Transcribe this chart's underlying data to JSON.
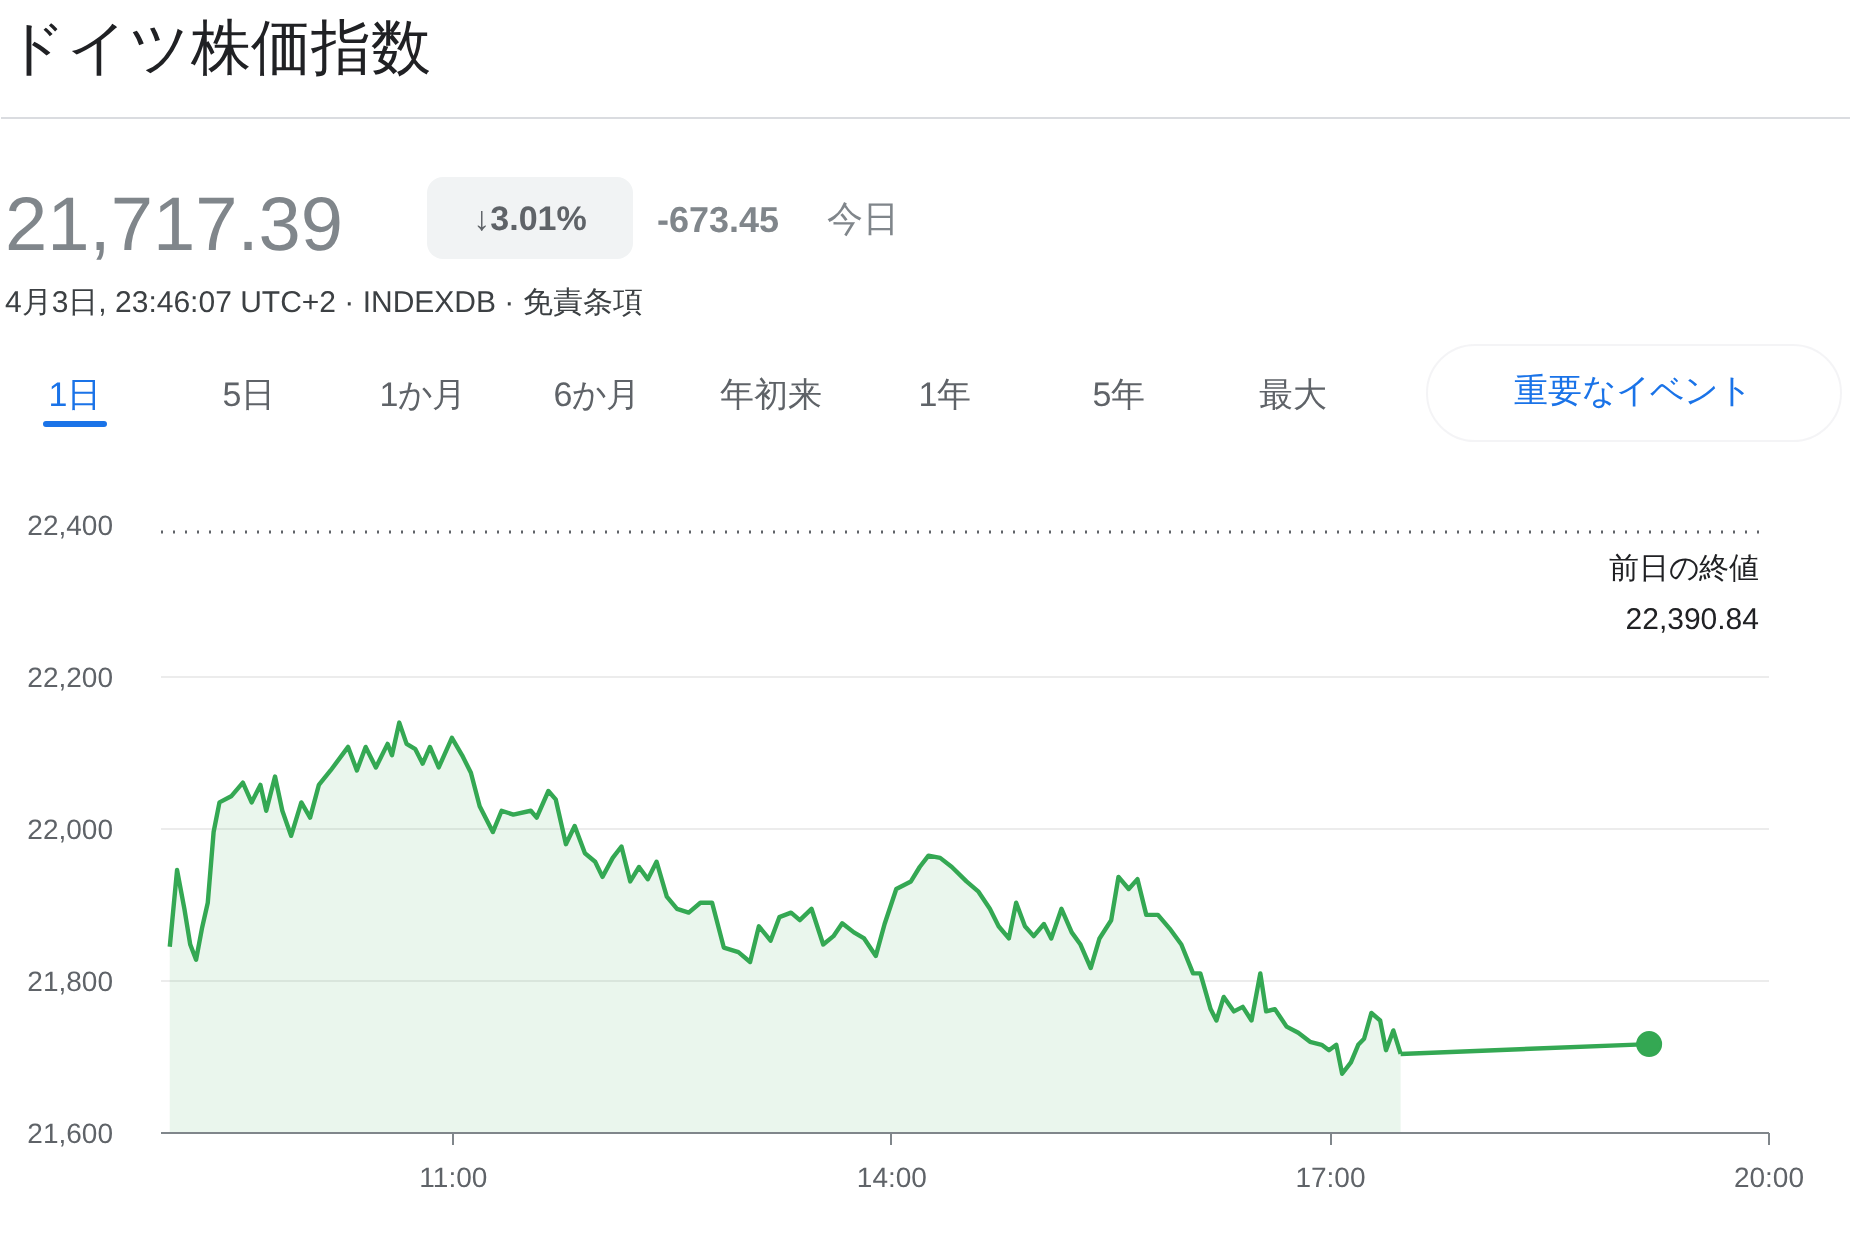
{
  "chart_data": {
    "type": "area",
    "title": "ドイツ株価指数",
    "subtitle": "4月3日, 23:46:07 UTC+2 · INDEXDB · 免責条項",
    "annotations": [
      "21,717.39",
      "↓3.01%",
      "-673.45",
      "今日",
      "1日",
      "5日",
      "1か月",
      "6か月",
      "年初来",
      "1年",
      "5年",
      "最大",
      "重要なイベント"
    ],
    "xlim": [
      9,
      20
    ],
    "xticks": [
      {
        "value": 11,
        "label": "11:00"
      },
      {
        "value": 14,
        "label": "14:00"
      },
      {
        "value": 17,
        "label": "17:00"
      },
      {
        "value": 20,
        "label": "20:00"
      }
    ],
    "ylim": [
      21600,
      22400
    ],
    "yticks": [
      {
        "value": 21600,
        "label": "21,600"
      },
      {
        "value": 21800,
        "label": "21,800"
      },
      {
        "value": 22000,
        "label": "22,000"
      },
      {
        "value": 22200,
        "label": "22,200"
      },
      {
        "value": 22400,
        "label": "22,400"
      }
    ],
    "grid": "y",
    "ref_lines": [
      {
        "axis": "y",
        "value": 22390.84,
        "label": "前日の終値 22,390.84",
        "line_style": "dotted",
        "color": "#5f6368"
      }
    ],
    "series": [
      {
        "color": "#34a853",
        "x": [
          9.06,
          9.11,
          9.16,
          9.2,
          9.24,
          9.28,
          9.32,
          9.36,
          9.4,
          9.48,
          9.56,
          9.62,
          9.68,
          9.72,
          9.78,
          9.83,
          9.89,
          9.96,
          10.02,
          10.08,
          10.16,
          10.28,
          10.34,
          10.4,
          10.47,
          10.55,
          10.58,
          10.63,
          10.68,
          10.74,
          10.79,
          10.84,
          10.9,
          10.99,
          11.06,
          11.12,
          11.18,
          11.27,
          11.33,
          11.41,
          11.53,
          11.57,
          11.65,
          11.7,
          11.77,
          11.83,
          11.9,
          11.97,
          12.02,
          12.09,
          12.15,
          12.21,
          12.27,
          12.33,
          12.39,
          12.46,
          12.53,
          12.61,
          12.69,
          12.77,
          12.85,
          12.95,
          13.03,
          13.09,
          13.17,
          13.23,
          13.31,
          13.37,
          13.45,
          13.53,
          13.6,
          13.66,
          13.74,
          13.81,
          13.89,
          13.95,
          14.03,
          14.13,
          14.19,
          14.25,
          14.33,
          14.41,
          14.51,
          14.59,
          14.67,
          14.73,
          14.8,
          14.85,
          14.91,
          14.97,
          15.04,
          15.09,
          15.16,
          15.23,
          15.29,
          15.36,
          15.42,
          15.5,
          15.55,
          15.62,
          15.68,
          15.74,
          15.82,
          15.9,
          15.98,
          16.06,
          16.11,
          16.18,
          16.22,
          16.27,
          16.34,
          16.4,
          16.46,
          16.52,
          16.56,
          16.62,
          16.7,
          16.78,
          16.86,
          16.94,
          16.99,
          17.04,
          17.08,
          17.14,
          17.19,
          17.23,
          17.28,
          17.34,
          17.38,
          17.43,
          17.48
        ],
        "values": [
          21845,
          21946,
          21895,
          21848,
          21828,
          21869,
          21903,
          21996,
          22035,
          22043,
          22061,
          22035,
          22058,
          22024,
          22069,
          22024,
          21991,
          22035,
          22015,
          22058,
          22077,
          22108,
          22077,
          22108,
          22081,
          22112,
          22097,
          22140,
          22112,
          22105,
          22086,
          22108,
          22081,
          22120,
          22097,
          22074,
          22030,
          21996,
          22024,
          22019,
          22024,
          22015,
          22050,
          22039,
          21980,
          22004,
          21968,
          21957,
          21937,
          21962,
          21977,
          21931,
          21950,
          21934,
          21957,
          21911,
          21895,
          21890,
          21903,
          21903,
          21844,
          21838,
          21825,
          21872,
          21853,
          21884,
          21890,
          21880,
          21895,
          21848,
          21859,
          21876,
          21864,
          21856,
          21833,
          21875,
          21921,
          21931,
          21950,
          21965,
          21962,
          21950,
          21931,
          21918,
          21895,
          21872,
          21856,
          21903,
          21872,
          21859,
          21875,
          21856,
          21895,
          21864,
          21848,
          21817,
          21856,
          21880,
          21937,
          21921,
          21934,
          21887,
          21887,
          21869,
          21848,
          21810,
          21810,
          21763,
          21748,
          21779,
          21760,
          21766,
          21748,
          21810,
          21760,
          21763,
          21740,
          21732,
          21720,
          21716,
          21709,
          21716,
          21678,
          21693,
          21716,
          21724,
          21758,
          21748,
          21709,
          21735,
          21704
        ]
      },
      {
        "type": "line",
        "color": "#34a853",
        "x": [
          17.48,
          19.18
        ],
        "values": [
          21704,
          21717
        ]
      },
      {
        "type": "scatter",
        "color": "#34a853",
        "marker": "circle",
        "x": [
          19.18
        ],
        "values": [
          21717
        ]
      }
    ]
  }
}
